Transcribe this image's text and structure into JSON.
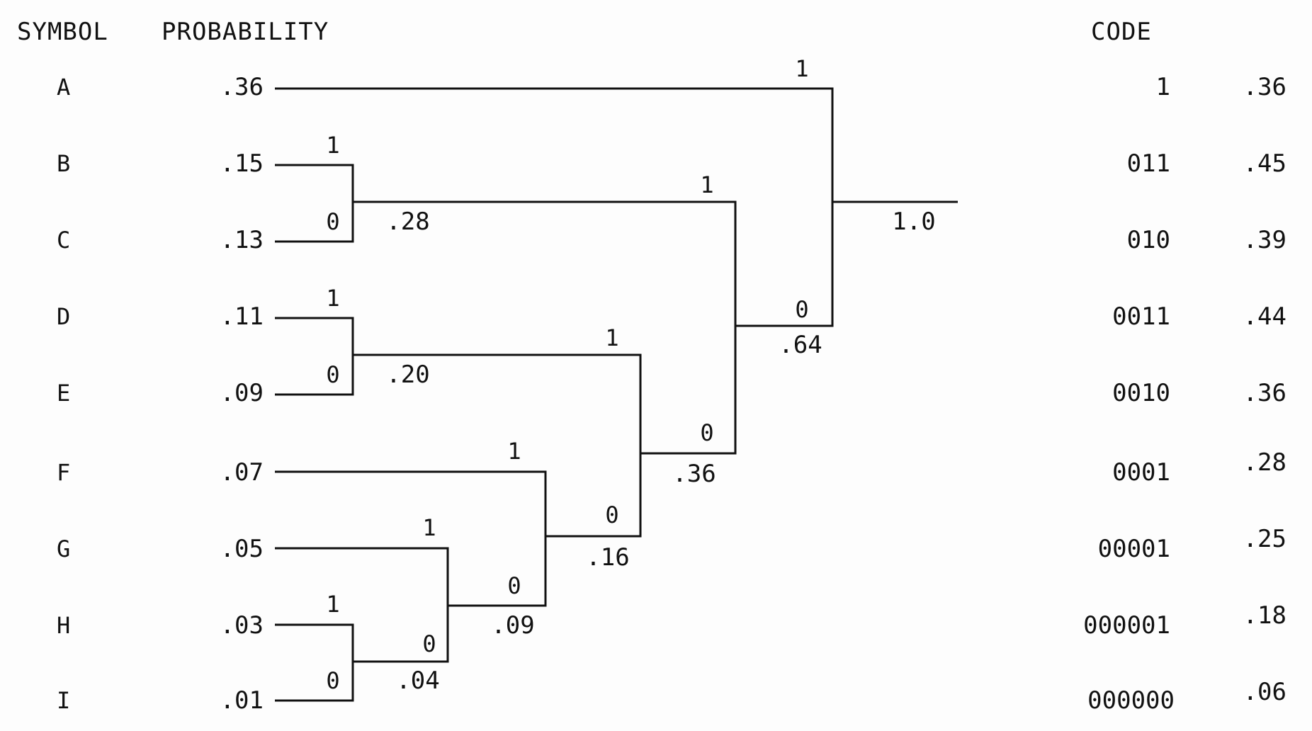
{
  "headers": {
    "symbol": "SYMBOL",
    "probability": "PROBABILITY",
    "code": "CODE"
  },
  "rows": [
    {
      "symbol": "A",
      "probability": ".36",
      "code": "1",
      "weighted": ".36"
    },
    {
      "symbol": "B",
      "probability": ".15",
      "code": "011",
      "weighted": ".45"
    },
    {
      "symbol": "C",
      "probability": ".13",
      "code": "010",
      "weighted": ".39"
    },
    {
      "symbol": "D",
      "probability": ".11",
      "code": "0011",
      "weighted": ".44"
    },
    {
      "symbol": "E",
      "probability": ".09",
      "code": "0010",
      "weighted": ".36"
    },
    {
      "symbol": "F",
      "probability": ".07",
      "code": "0001",
      "weighted": ".28"
    },
    {
      "symbol": "G",
      "probability": ".05",
      "code": "00001",
      "weighted": ".25"
    },
    {
      "symbol": "H",
      "probability": ".03",
      "code": "000001",
      "weighted": ".18"
    },
    {
      "symbol": "I",
      "probability": ".01",
      "code": "000000",
      "weighted": ".06"
    }
  ],
  "merges": [
    {
      "id": "n_hi",
      "label": ".04",
      "bit_top": "1",
      "bit_bottom": "0"
    },
    {
      "id": "n_ghi",
      "label": ".09",
      "bit_top": "1",
      "bit_bottom": "0"
    },
    {
      "id": "n_fghi",
      "label": ".16",
      "bit_top": "1",
      "bit_bottom": "0"
    },
    {
      "id": "n_de",
      "label": ".20",
      "bit_top": "1",
      "bit_bottom": "0"
    },
    {
      "id": "n_low",
      "label": ".36",
      "bit_top": "1",
      "bit_bottom": "0"
    },
    {
      "id": "n_bc",
      "label": ".28",
      "bit_top": "1",
      "bit_bottom": "0"
    },
    {
      "id": "n_mid",
      "label": ".64",
      "bit_top": "1",
      "bit_bottom": "0"
    },
    {
      "id": "n_root",
      "label": "1.0",
      "bit_top": "1",
      "bit_bottom": "0"
    }
  ]
}
